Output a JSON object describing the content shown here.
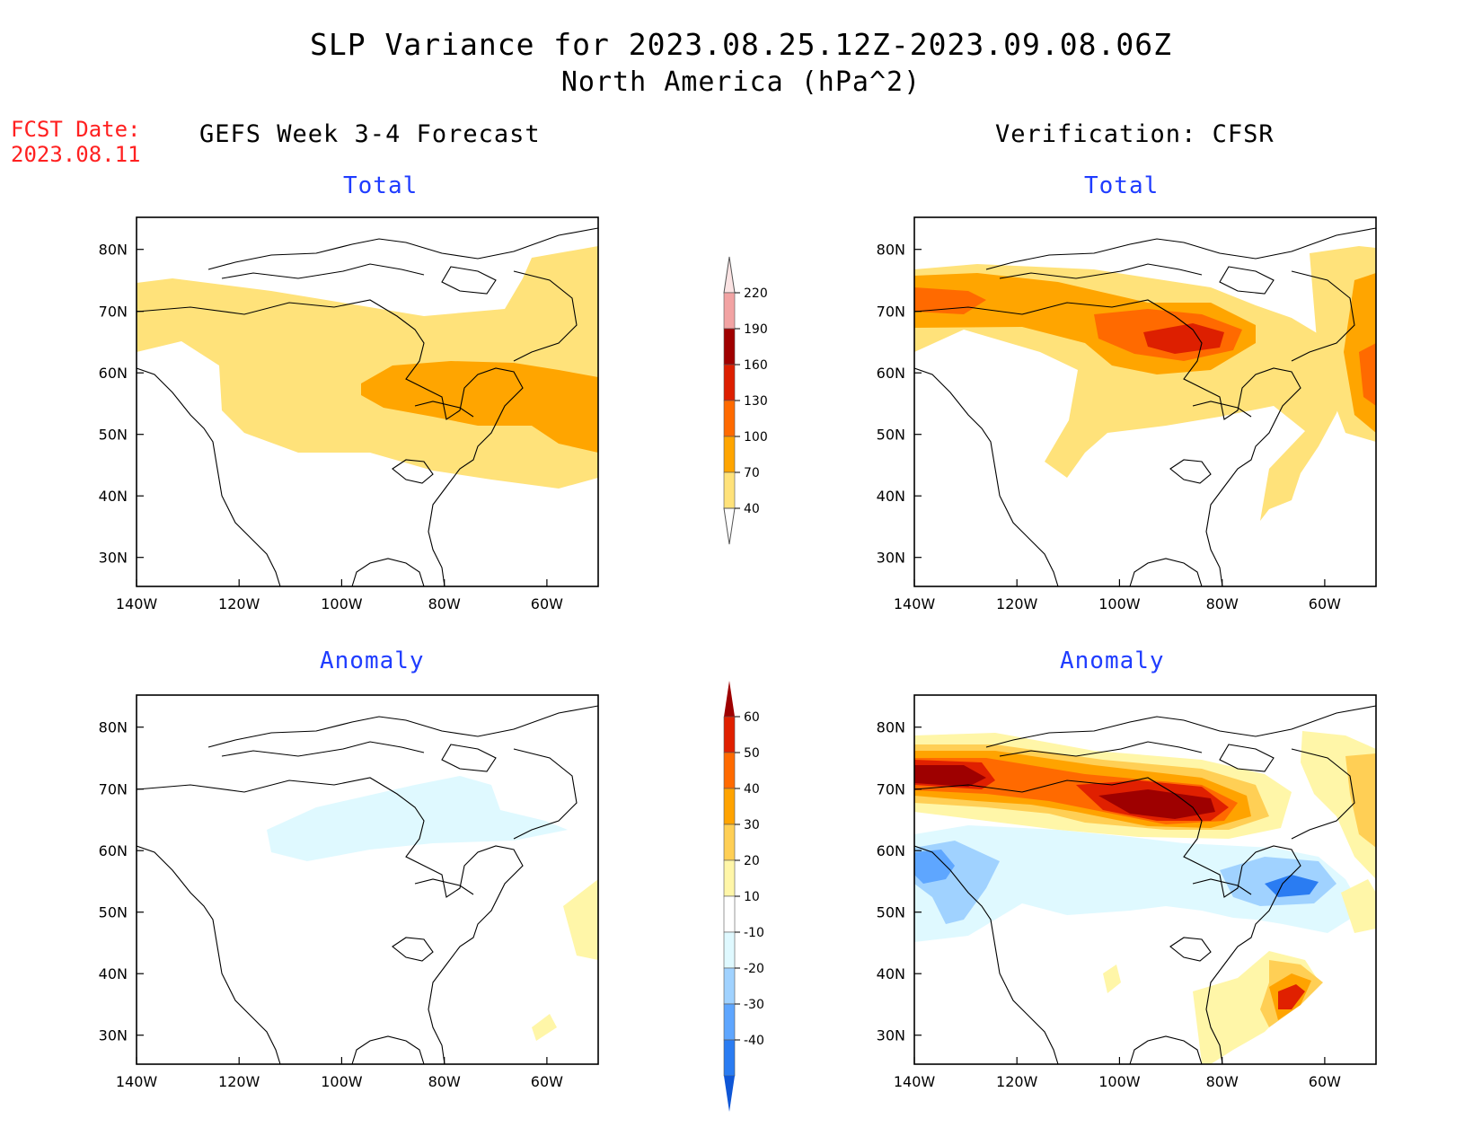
{
  "title": {
    "line1": "SLP Variance for 2023.08.25.12Z-2023.09.08.06Z",
    "line2": "North America (hPa^2)"
  },
  "fcst_date": {
    "label": "FCST Date:",
    "value": "2023.08.11"
  },
  "columns": {
    "left": "GEFS Week 3-4 Forecast",
    "right": "Verification: CFSR"
  },
  "panels": [
    {
      "id": "gefs-total",
      "title": "Total"
    },
    {
      "id": "cfsr-total",
      "title": "Total"
    },
    {
      "id": "gefs-anomaly",
      "title": "Anomaly"
    },
    {
      "id": "cfsr-anomaly",
      "title": "Anomaly"
    }
  ],
  "axes": {
    "lon_ticks": [
      "140W",
      "120W",
      "100W",
      "80W",
      "60W"
    ],
    "lat_ticks": [
      "80N",
      "70N",
      "60N",
      "50N",
      "40N",
      "30N"
    ],
    "lon_range": [
      -140,
      -50
    ],
    "lat_range": [
      25,
      85
    ]
  },
  "colorbars": {
    "total": {
      "levels": [
        "220",
        "190",
        "160",
        "130",
        "100",
        "70",
        "40"
      ],
      "colors": [
        "#fbe3e3",
        "#f2a3a3",
        "#a00000",
        "#dd1f00",
        "#ff6a00",
        "#ffa500",
        "#ffe27a"
      ]
    },
    "anomaly": {
      "levels": [
        "60",
        "50",
        "40",
        "30",
        "20",
        "10",
        "-10",
        "-20",
        "-30",
        "-40"
      ],
      "colors": [
        "#9e0000",
        "#e02000",
        "#ff6a00",
        "#ffa300",
        "#ffcf55",
        "#fff6a8",
        "#ffffff",
        "#dff9ff",
        "#a0d2ff",
        "#5ea6ff",
        "#2a7cf2",
        "#0f56d6"
      ]
    }
  },
  "palette": {
    "yellow": "#ffe27a",
    "orange": "#ffa500",
    "dark_orange": "#ff6a00",
    "red": "#dd1f00",
    "dark_red": "#a00000",
    "pink": "#f2a3a3",
    "lt_yellow": "#fff6a8",
    "yellow2": "#ffcf55",
    "orange30": "#ffa300",
    "orange40": "#ff6a00",
    "red50": "#e02000",
    "dred60": "#9e0000",
    "lt_blue": "#dff9ff",
    "blue20": "#a0d2ff",
    "blue30": "#5ea6ff",
    "blue40": "#2a7cf2"
  }
}
